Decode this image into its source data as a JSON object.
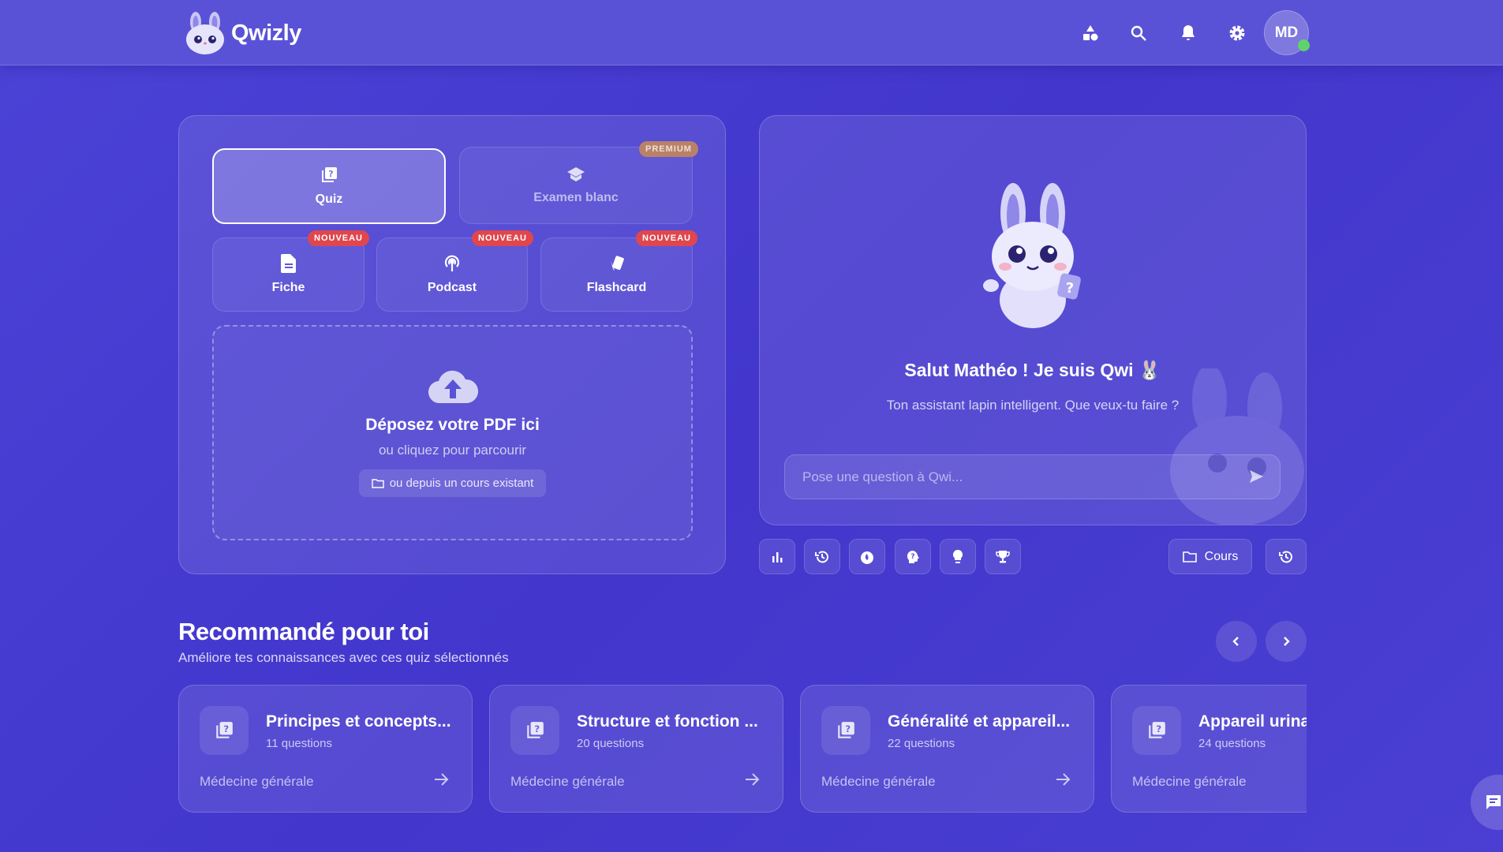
{
  "header": {
    "brand": "Qwizly",
    "icons": [
      "shapes-icon",
      "search-icon",
      "bell-icon",
      "gear-icon"
    ],
    "avatar_initials": "MD",
    "online_color": "#5fd36b"
  },
  "creator": {
    "modes": [
      {
        "label": "Quiz",
        "icon": "quiz-icon",
        "active": true
      },
      {
        "label": "Examen blanc",
        "icon": "graduation-cap-icon",
        "badge": "PREMIUM"
      },
      {
        "label": "Fiche",
        "icon": "file-icon",
        "badge": "NOUVEAU"
      },
      {
        "label": "Podcast",
        "icon": "podcast-icon",
        "badge": "NOUVEAU"
      },
      {
        "label": "Flashcard",
        "icon": "cards-icon",
        "badge": "NOUVEAU"
      }
    ],
    "drop": {
      "title": "Déposez votre PDF ici",
      "subtitle": "ou cliquez pour parcourir",
      "existing_label": "ou depuis un cours existant"
    }
  },
  "assistant": {
    "greeting": "Salut Mathéo ! Je suis Qwi 🐰",
    "subtitle": "Ton assistant lapin intelligent. Que veux-tu faire ?",
    "input_placeholder": "Pose une question à Qwi...",
    "tools": [
      "stats-icon",
      "history-icon",
      "fire-icon",
      "brain-question-icon",
      "lightbulb-icon",
      "trophy-icon"
    ],
    "cours_label": "Cours"
  },
  "recommended": {
    "title": "Recommandé pour toi",
    "subtitle": "Améliore tes connaissances avec ces quiz sélectionnés",
    "cards": [
      {
        "title": "Principes et concepts...",
        "count": "11 questions",
        "category": "Médecine générale"
      },
      {
        "title": "Structure et fonction ...",
        "count": "20 questions",
        "category": "Médecine générale"
      },
      {
        "title": "Généralité et appareil...",
        "count": "22 questions",
        "category": "Médecine générale"
      },
      {
        "title": "Appareil urina",
        "count": "24 questions",
        "category": "Médecine générale"
      }
    ]
  }
}
